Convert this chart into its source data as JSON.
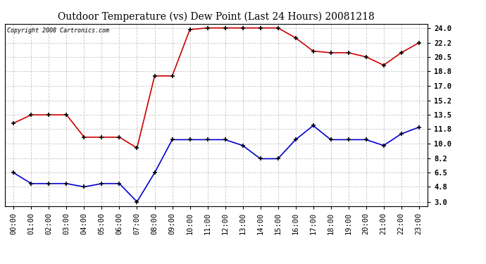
{
  "title": "Outdoor Temperature (vs) Dew Point (Last 24 Hours) 20081218",
  "copyright_text": "Copyright 2008 Cartronics.com",
  "hours": [
    "00:00",
    "01:00",
    "02:00",
    "03:00",
    "04:00",
    "05:00",
    "06:00",
    "07:00",
    "08:00",
    "09:00",
    "10:00",
    "11:00",
    "12:00",
    "13:00",
    "14:00",
    "15:00",
    "16:00",
    "17:00",
    "18:00",
    "19:00",
    "20:00",
    "21:00",
    "22:00",
    "23:00"
  ],
  "temp_red": [
    12.5,
    13.5,
    13.5,
    13.5,
    10.8,
    10.8,
    10.8,
    9.5,
    18.2,
    18.2,
    23.8,
    24.0,
    24.0,
    24.0,
    24.0,
    24.0,
    22.8,
    21.2,
    21.0,
    21.0,
    20.5,
    19.5,
    21.0,
    22.2
  ],
  "dew_blue": [
    6.5,
    5.2,
    5.2,
    5.2,
    4.8,
    5.2,
    5.2,
    3.0,
    6.5,
    10.5,
    10.5,
    10.5,
    10.5,
    9.8,
    8.2,
    8.2,
    10.5,
    12.2,
    10.5,
    10.5,
    10.5,
    9.8,
    11.2,
    12.0
  ],
  "yticks": [
    3.0,
    4.8,
    6.5,
    8.2,
    10.0,
    11.8,
    13.5,
    15.2,
    17.0,
    18.8,
    20.5,
    22.2,
    24.0
  ],
  "ymin": 2.5,
  "ymax": 24.5,
  "bg_color": "#ffffff",
  "grid_color": "#c8c8c8",
  "red_color": "#cc0000",
  "blue_color": "#0000cc",
  "title_fontsize": 10,
  "axis_fontsize": 7.5,
  "copyright_fontsize": 6
}
